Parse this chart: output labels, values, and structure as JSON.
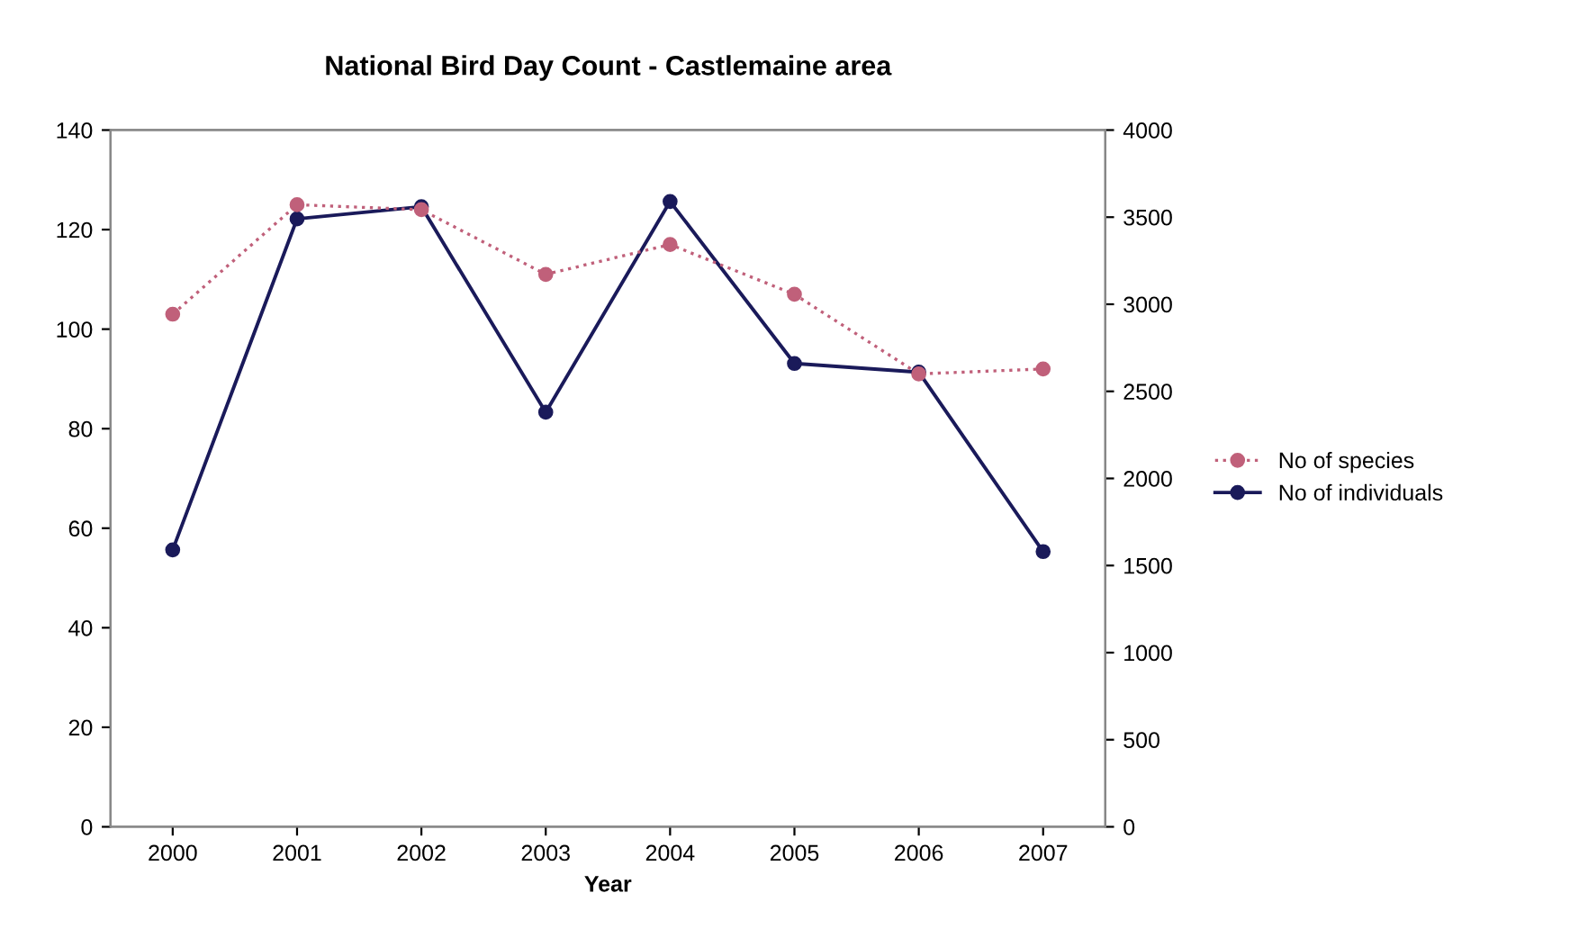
{
  "chart_data": {
    "type": "line",
    "title": "National Bird Day Count - Castlemaine area",
    "xlabel": "Year",
    "categories": [
      "2000",
      "2001",
      "2002",
      "2003",
      "2004",
      "2005",
      "2006",
      "2007"
    ],
    "series": [
      {
        "name": "No of species",
        "color": "#c0607a",
        "line_style": "dotted",
        "values": [
          103,
          125,
          124,
          111,
          117,
          107,
          91,
          92
        ]
      },
      {
        "name": "No of individuals",
        "color": "#1a1a5a",
        "line_style": "solid",
        "axis": "y2",
        "values": [
          1590,
          3490,
          3560,
          2380,
          3590,
          2660,
          2610,
          1580
        ]
      }
    ],
    "ylim": [
      0,
      140
    ],
    "yticks": [
      0,
      20,
      40,
      60,
      80,
      100,
      120,
      140
    ],
    "y2lim": [
      0,
      4000
    ],
    "y2ticks": [
      0,
      500,
      1000,
      1500,
      2000,
      2500,
      3000,
      3500,
      4000
    ],
    "marker": "circle",
    "grid": false,
    "legend": "right"
  }
}
